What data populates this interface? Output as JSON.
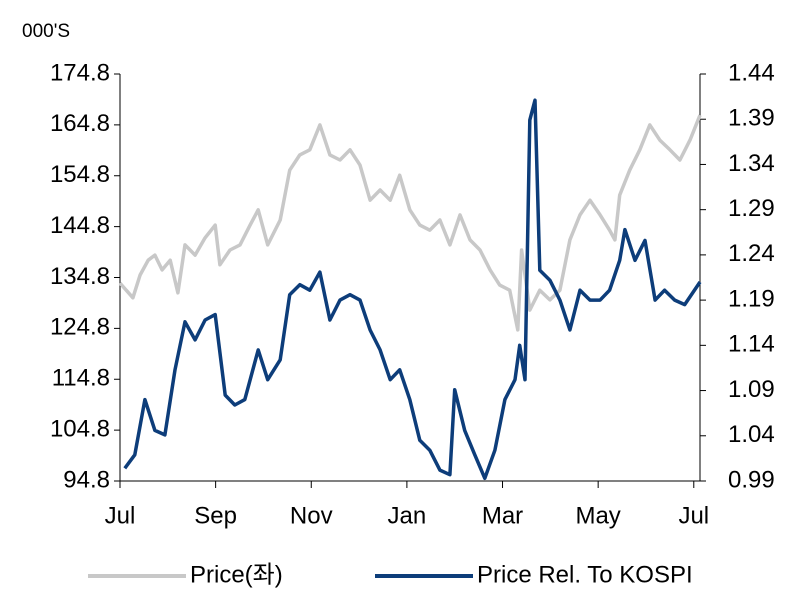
{
  "chart_data": {
    "type": "line",
    "unit_label": "000'S",
    "xlim": [
      0,
      12.13
    ],
    "xticks": [
      {
        "value": 0,
        "label": "Jul"
      },
      {
        "value": 2,
        "label": "Sep"
      },
      {
        "value": 4,
        "label": "Nov"
      },
      {
        "value": 6,
        "label": "Jan"
      },
      {
        "value": 8,
        "label": "Mar"
      },
      {
        "value": 10,
        "label": "May"
      },
      {
        "value": 12,
        "label": "Jul"
      }
    ],
    "ylim": [
      94.8,
      174.8
    ],
    "yticks": [
      94.8,
      104.8,
      114.8,
      124.8,
      134.8,
      144.8,
      154.8,
      164.8,
      174.8
    ],
    "y2lim": [
      0.99,
      1.44
    ],
    "y2ticks": [
      0.99,
      1.04,
      1.09,
      1.14,
      1.19,
      1.24,
      1.29,
      1.34,
      1.39,
      1.44
    ],
    "legend": "bottom",
    "series": [
      {
        "name": "Price(좌)",
        "color": "#c8c8c8",
        "x": [
          0,
          0.27,
          0.42,
          0.59,
          0.73,
          0.88,
          1.05,
          1.21,
          1.36,
          1.57,
          1.78,
          1.99,
          2.09,
          2.3,
          2.51,
          2.72,
          2.89,
          3.09,
          3.35,
          3.55,
          3.76,
          3.97,
          4.18,
          4.39,
          4.6,
          4.81,
          5.02,
          5.23,
          5.44,
          5.65,
          5.85,
          6.06,
          6.27,
          6.48,
          6.69,
          6.9,
          7.11,
          7.32,
          7.53,
          7.74,
          7.94,
          8.15,
          8.32,
          8.4,
          8.57,
          8.78,
          8.99,
          9.2,
          9.41,
          9.62,
          9.83,
          10.04,
          10.24,
          10.35,
          10.45,
          10.66,
          10.87,
          11.08,
          11.29,
          11.5,
          11.71,
          11.92,
          12.13
        ],
        "values": [
          133.7,
          130.8,
          135.3,
          138.2,
          139.2,
          136.3,
          138.2,
          131.8,
          141.2,
          139.2,
          142.6,
          145.1,
          137.3,
          140.2,
          141.2,
          145.1,
          148.1,
          141.2,
          146.1,
          155.9,
          158.9,
          159.9,
          164.8,
          158.9,
          157.9,
          159.9,
          156.9,
          150.0,
          152.0,
          150.0,
          154.9,
          148.1,
          145.1,
          144.1,
          146.1,
          141.2,
          147.1,
          142.2,
          140.2,
          136.3,
          133.3,
          132.3,
          124.5,
          140.2,
          128.4,
          132.3,
          130.4,
          132.3,
          142.2,
          147.1,
          150.0,
          147.1,
          144.1,
          142.2,
          151.0,
          155.9,
          159.9,
          164.8,
          161.8,
          159.9,
          157.9,
          161.8,
          166.7
        ]
      },
      {
        "name": "Price Rel. To KOSPI",
        "color": "#0d3d7a",
        "axis": "y2",
        "x": [
          0.1,
          0.31,
          0.52,
          0.73,
          0.94,
          1.15,
          1.36,
          1.57,
          1.78,
          1.99,
          2.2,
          2.4,
          2.61,
          2.89,
          3.09,
          3.35,
          3.55,
          3.76,
          3.97,
          4.18,
          4.39,
          4.6,
          4.81,
          5.02,
          5.23,
          5.44,
          5.65,
          5.85,
          6.06,
          6.27,
          6.48,
          6.69,
          6.9,
          7.0,
          7.21,
          7.42,
          7.63,
          7.84,
          8.05,
          8.26,
          8.36,
          8.47,
          8.57,
          8.68,
          8.78,
          8.99,
          9.2,
          9.41,
          9.62,
          9.83,
          10.04,
          10.24,
          10.45,
          10.56,
          10.77,
          10.98,
          11.19,
          11.39,
          11.6,
          11.81,
          12.13
        ],
        "values": [
          1.004,
          1.019,
          1.08,
          1.046,
          1.041,
          1.113,
          1.166,
          1.146,
          1.168,
          1.174,
          1.085,
          1.074,
          1.08,
          1.135,
          1.102,
          1.124,
          1.196,
          1.207,
          1.201,
          1.221,
          1.168,
          1.19,
          1.196,
          1.19,
          1.157,
          1.135,
          1.102,
          1.113,
          1.08,
          1.035,
          1.024,
          1.002,
          0.997,
          1.091,
          1.046,
          1.019,
          0.993,
          1.024,
          1.08,
          1.102,
          1.14,
          1.102,
          1.389,
          1.411,
          1.223,
          1.212,
          1.19,
          1.157,
          1.201,
          1.19,
          1.19,
          1.201,
          1.234,
          1.268,
          1.234,
          1.256,
          1.19,
          1.201,
          1.19,
          1.185,
          1.21
        ]
      }
    ]
  }
}
